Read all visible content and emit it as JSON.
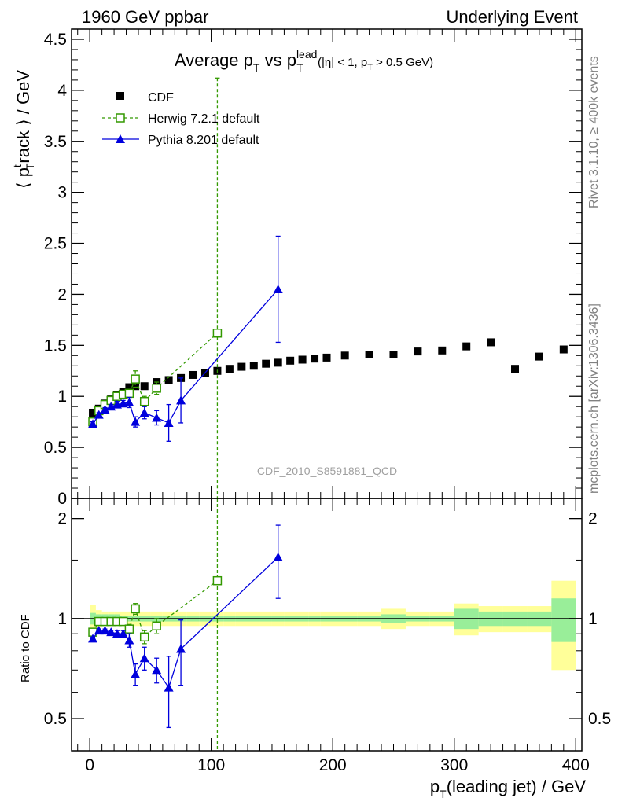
{
  "header": {
    "left": "1960 GeV ppbar",
    "right": "Underlying Event"
  },
  "plot_title": {
    "main": "Average p",
    "sub_T": "T",
    "vs": " vs p",
    "lead_sup": "lead",
    "sub_T2": "T",
    "cut_open": "(|η| < 1, p",
    "cut_sub": "T",
    "cut_close": " > 0.5 GeV)"
  },
  "watermark": "CDF_2010_S8591881_QCD",
  "side_labels": {
    "rivet": "Rivet 3.1.10, ≥ 400k events",
    "mcplots": "mcplots.cern.ch [arXiv:1306.3436]"
  },
  "colors": {
    "data": "#000000",
    "herwig": "#339900",
    "pythia": "#0000dd",
    "band_outer": "#ffff99",
    "band_inner": "#99ee99"
  },
  "legend": {
    "data": "CDF",
    "herwig": "Herwig 7.2.1 default",
    "pythia": "Pythia 8.201 default"
  },
  "chart_data": [
    {
      "type": "scatter",
      "panel": "main",
      "ylabel": "⟨ p_T^t rack ⟩ / GeV",
      "ylabel_parts": {
        "open": "⟨ p",
        "sup": "t",
        "sub": "T",
        "rest": "rack ⟩ / GeV"
      },
      "xlim": [
        -15,
        405
      ],
      "ylim": [
        0,
        4.6
      ],
      "yticks": [
        0,
        0.5,
        1,
        1.5,
        2,
        2.5,
        3,
        3.5,
        4,
        4.5
      ],
      "ytick_labels": [
        "0",
        "0.5",
        "1",
        "1.5",
        "2",
        "2.5",
        "3",
        "3.5",
        "4",
        "4.5"
      ],
      "legend_position": "top-left",
      "series": [
        {
          "name": "CDF",
          "x": [
            2.5,
            7.5,
            12.5,
            17.5,
            22.5,
            27.5,
            32.5,
            37.5,
            45,
            55,
            65,
            75,
            85,
            95,
            105,
            115,
            125,
            135,
            145,
            155,
            165,
            175,
            185,
            195,
            210,
            230,
            250,
            270,
            290,
            310,
            330,
            350,
            370,
            390
          ],
          "y": [
            0.84,
            0.88,
            0.93,
            0.97,
            1.01,
            1.04,
            1.09,
            1.1,
            1.1,
            1.14,
            1.16,
            1.18,
            1.21,
            1.23,
            1.25,
            1.27,
            1.29,
            1.3,
            1.32,
            1.33,
            1.35,
            1.36,
            1.37,
            1.38,
            1.4,
            1.41,
            1.41,
            1.44,
            1.45,
            1.49,
            1.53,
            1.27,
            1.39,
            1.46
          ]
        },
        {
          "name": "Herwig 7.2.1 default",
          "x": [
            2.5,
            7.5,
            12.5,
            17.5,
            22.5,
            27.5,
            32.5,
            37.5,
            45,
            55,
            105
          ],
          "y": [
            0.75,
            0.86,
            0.92,
            0.96,
            1.0,
            1.02,
            1.03,
            1.17,
            0.95,
            1.08,
            1.62
          ],
          "err": [
            0.02,
            0.02,
            0.02,
            0.02,
            0.02,
            0.03,
            0.04,
            0.08,
            0.05,
            0.06,
            2.5
          ]
        },
        {
          "name": "Pythia 8.201 default",
          "x": [
            2.5,
            7.5,
            12.5,
            17.5,
            22.5,
            27.5,
            32.5,
            37.5,
            45,
            55,
            65,
            75,
            155
          ],
          "y": [
            0.73,
            0.82,
            0.87,
            0.9,
            0.92,
            0.93,
            0.94,
            0.75,
            0.84,
            0.79,
            0.74,
            0.96,
            2.05
          ],
          "err": [
            0.02,
            0.02,
            0.02,
            0.02,
            0.03,
            0.03,
            0.05,
            0.05,
            0.06,
            0.07,
            0.18,
            0.22,
            0.52
          ]
        }
      ]
    },
    {
      "type": "scatter",
      "panel": "ratio",
      "ylabel": "Ratio to CDF",
      "xlabel": "p_T(leading jet) / GeV",
      "xlabel_parts": {
        "p": "p",
        "sub": "T",
        "rest": "(leading jet) / GeV"
      },
      "xlim": [
        -15,
        405
      ],
      "ylim": [
        0.4,
        2.3
      ],
      "log_y": true,
      "yticks": [
        0.5,
        1,
        2
      ],
      "ytick_labels": [
        "0.5",
        "1",
        "2"
      ],
      "xticks": [
        0,
        100,
        200,
        300,
        400
      ],
      "xtick_labels": [
        "0",
        "100",
        "200",
        "300",
        "400"
      ],
      "series": [
        {
          "name": "Herwig 7.2.1 default",
          "x": [
            2.5,
            7.5,
            12.5,
            17.5,
            22.5,
            27.5,
            32.5,
            37.5,
            45,
            55,
            105
          ],
          "y": [
            0.91,
            0.98,
            0.98,
            0.98,
            0.98,
            0.98,
            0.93,
            1.07,
            0.88,
            0.95,
            1.3
          ],
          "err": [
            0.01,
            0.01,
            0.01,
            0.01,
            0.01,
            0.02,
            0.03,
            0.04,
            0.04,
            0.05,
            2.0
          ]
        },
        {
          "name": "Pythia 8.201 default",
          "x": [
            2.5,
            7.5,
            12.5,
            17.5,
            22.5,
            27.5,
            32.5,
            37.5,
            45,
            55,
            65,
            75,
            155
          ],
          "y": [
            0.87,
            0.92,
            0.92,
            0.91,
            0.9,
            0.9,
            0.86,
            0.68,
            0.76,
            0.7,
            0.62,
            0.81,
            1.53
          ],
          "err": [
            0.01,
            0.01,
            0.01,
            0.01,
            0.02,
            0.02,
            0.04,
            0.05,
            0.06,
            0.06,
            0.15,
            0.18,
            0.38
          ]
        }
      ],
      "uncertainty_bands": {
        "x_edges": [
          0,
          5,
          10,
          15,
          20,
          25,
          30,
          35,
          40,
          50,
          60,
          70,
          80,
          90,
          100,
          110,
          120,
          130,
          140,
          150,
          160,
          170,
          180,
          190,
          200,
          220,
          240,
          260,
          280,
          300,
          320,
          340,
          360,
          380,
          400
        ],
        "outer": [
          0.1,
          0.06,
          0.05,
          0.05,
          0.05,
          0.05,
          0.05,
          0.05,
          0.05,
          0.05,
          0.05,
          0.05,
          0.05,
          0.05,
          0.05,
          0.05,
          0.05,
          0.05,
          0.05,
          0.05,
          0.05,
          0.05,
          0.05,
          0.05,
          0.05,
          0.05,
          0.07,
          0.05,
          0.05,
          0.11,
          0.09,
          0.09,
          0.09,
          0.3
        ],
        "inner": [
          0.04,
          0.03,
          0.03,
          0.03,
          0.03,
          0.02,
          0.02,
          0.02,
          0.02,
          0.02,
          0.02,
          0.02,
          0.02,
          0.02,
          0.02,
          0.02,
          0.02,
          0.02,
          0.02,
          0.02,
          0.02,
          0.02,
          0.02,
          0.02,
          0.02,
          0.02,
          0.03,
          0.02,
          0.02,
          0.07,
          0.05,
          0.05,
          0.05,
          0.15
        ]
      }
    }
  ]
}
